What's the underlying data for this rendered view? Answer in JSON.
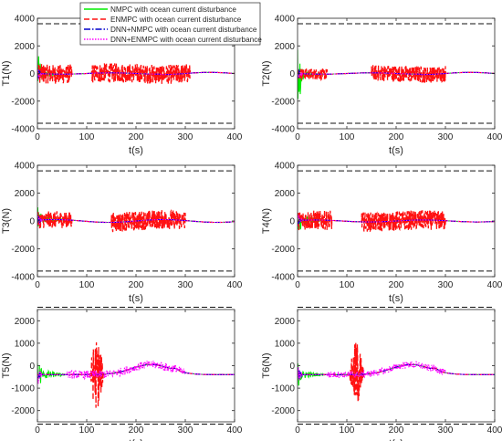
{
  "legend": {
    "placement": "top-center",
    "entries": [
      {
        "label": "NMPC with ocean current disturbance",
        "color": "#00ee00",
        "style": "solid"
      },
      {
        "label": "ENMPC with ocean current disturbance",
        "color": "#ff1111",
        "style": "dashed"
      },
      {
        "label": "DNN+NMPC with ocean current disturbance",
        "color": "#0000cc",
        "style": "dashdot"
      },
      {
        "label": "DNN+ENMPC with ocean current disturbance",
        "color": "#ff00ff",
        "style": "dotted"
      }
    ]
  },
  "chart_data": [
    {
      "type": "line",
      "id": "T1",
      "ylabel": "T1(N)",
      "xlabel": "t(s)",
      "xlim": [
        0,
        400
      ],
      "ylim": [
        -4000,
        4000
      ],
      "xticks": [
        "0",
        "100",
        "200",
        "300",
        "400"
      ],
      "yticks": [
        "-4000",
        "-2000",
        "0",
        "2000",
        "4000"
      ],
      "limits": [
        3600,
        -3600
      ],
      "grid": false,
      "series": [
        {
          "name": "NMPC with ocean current disturbance",
          "amp0": 1500,
          "amp_early": 300
        },
        {
          "name": "ENMPC with ocean current disturbance",
          "band": [
            [
              0,
              70,
              700
            ],
            [
              110,
              310,
              700
            ]
          ]
        },
        {
          "name": "DNN+NMPC with ocean current disturbance"
        },
        {
          "name": "DNN+ENMPC with ocean current disturbance"
        }
      ]
    },
    {
      "type": "line",
      "id": "T2",
      "ylabel": "T2(N)",
      "xlabel": "t(s)",
      "xlim": [
        0,
        400
      ],
      "ylim": [
        -4000,
        4000
      ],
      "xticks": [
        "0",
        "100",
        "200",
        "300",
        "400"
      ],
      "yticks": [
        "-4000",
        "-2000",
        "0",
        "2000",
        "4000"
      ],
      "limits": [
        3600,
        -3600
      ],
      "grid": false,
      "series": [
        {
          "name": "NMPC with ocean current disturbance",
          "amp0": 2500,
          "amp_early": 200
        },
        {
          "name": "ENMPC with ocean current disturbance",
          "band": [
            [
              0,
              60,
              400
            ],
            [
              150,
              300,
              600
            ]
          ]
        },
        {
          "name": "DNN+NMPC with ocean current disturbance"
        },
        {
          "name": "DNN+ENMPC with ocean current disturbance"
        }
      ]
    },
    {
      "type": "line",
      "id": "T3",
      "ylabel": "T3(N)",
      "xlabel": "t(s)",
      "xlim": [
        0,
        400
      ],
      "ylim": [
        -4000,
        4000
      ],
      "xticks": [
        "0",
        "100",
        "200",
        "300",
        "400"
      ],
      "yticks": [
        "-4000",
        "-2000",
        "0",
        "2000",
        "4000"
      ],
      "limits": [
        3600,
        -3600
      ],
      "grid": false,
      "series": [
        {
          "name": "NMPC with ocean current disturbance",
          "amp0": 1000,
          "amp_early": 200
        },
        {
          "name": "ENMPC with ocean current disturbance",
          "band": [
            [
              0,
              70,
              600
            ],
            [
              150,
              300,
              700
            ]
          ]
        },
        {
          "name": "DNN+NMPC with ocean current disturbance"
        },
        {
          "name": "DNN+ENMPC with ocean current disturbance"
        }
      ]
    },
    {
      "type": "line",
      "id": "T4",
      "ylabel": "T4(N)",
      "xlabel": "t(s)",
      "xlim": [
        0,
        400
      ],
      "ylim": [
        -4000,
        4000
      ],
      "xticks": [
        "0",
        "100",
        "200",
        "300",
        "400"
      ],
      "yticks": [
        "-4000",
        "-2000",
        "0",
        "2000",
        "4000"
      ],
      "limits": [
        3600,
        -3600
      ],
      "grid": false,
      "series": [
        {
          "name": "NMPC with ocean current disturbance",
          "amp0": 1300,
          "amp_early": 300
        },
        {
          "name": "ENMPC with ocean current disturbance",
          "band": [
            [
              0,
              70,
              700
            ],
            [
              130,
              300,
              700
            ]
          ]
        },
        {
          "name": "DNN+NMPC with ocean current disturbance"
        },
        {
          "name": "DNN+ENMPC with ocean current disturbance"
        }
      ]
    },
    {
      "type": "line",
      "id": "T5",
      "ylabel": "T5(N)",
      "xlabel": "t(s)",
      "xlim": [
        0,
        400
      ],
      "ylim": [
        -2500,
        2500
      ],
      "xticks": [
        "0",
        "100",
        "200",
        "300",
        "400"
      ],
      "yticks": [
        "-2000",
        "-1000",
        "0",
        "1000",
        "2000"
      ],
      "limits": [
        2600,
        -2600
      ],
      "grid": false,
      "series": [
        {
          "name": "NMPC with ocean current disturbance",
          "amp0": 800,
          "amp_early": 200
        },
        {
          "name": "ENMPC with ocean current disturbance",
          "burst": [
            105,
            135,
            1600
          ]
        },
        {
          "name": "DNN+NMPC with ocean current disturbance"
        },
        {
          "name": "DNN+ENMPC with ocean current disturbance",
          "noise": 180
        }
      ]
    },
    {
      "type": "line",
      "id": "T6",
      "ylabel": "T6(N)",
      "xlabel": "t(s)",
      "xlim": [
        0,
        400
      ],
      "ylim": [
        -2500,
        2500
      ],
      "xticks": [
        "0",
        "100",
        "200",
        "300",
        "400"
      ],
      "yticks": [
        "-2000",
        "-1000",
        "0",
        "1000",
        "2000"
      ],
      "limits": [
        2600,
        -2600
      ],
      "grid": false,
      "series": [
        {
          "name": "NMPC with ocean current disturbance",
          "amp0": 600,
          "amp_early": 150
        },
        {
          "name": "ENMPC with ocean current disturbance",
          "burst": [
            105,
            135,
            1500
          ]
        },
        {
          "name": "DNN+NMPC with ocean current disturbance"
        },
        {
          "name": "DNN+ENMPC with ocean current disturbance",
          "noise": 150
        }
      ]
    }
  ]
}
